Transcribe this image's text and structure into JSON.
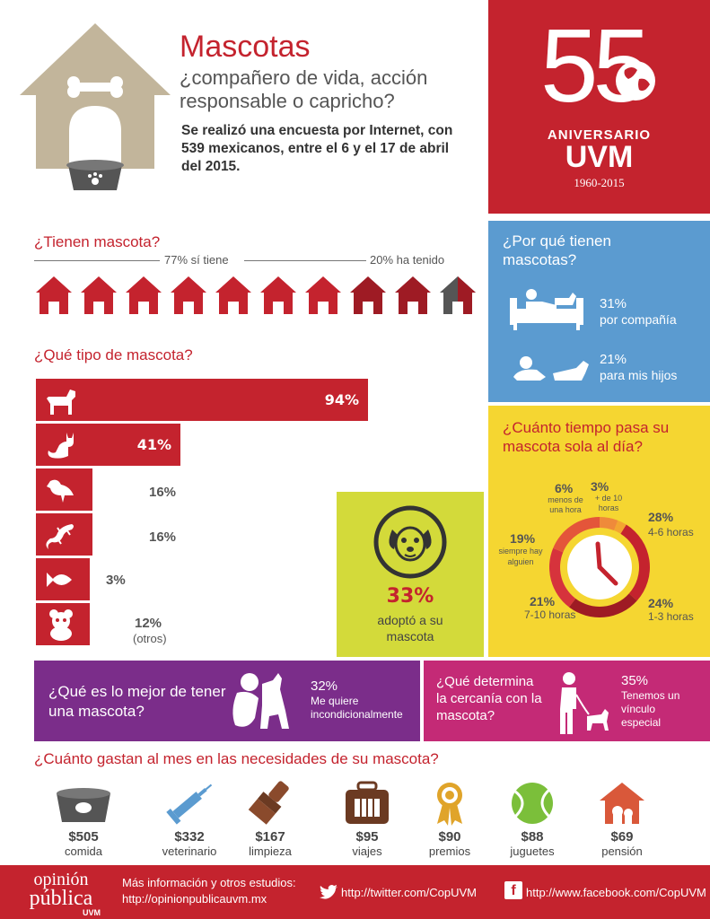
{
  "header": {
    "title": "Mascotas",
    "subtitle": "¿compañero de vida, acción responsable o capricho?",
    "intro": "Se realizó una encuesta por Internet, con 539 mexicanos, entre el 6 y el 17 de abril del 2015."
  },
  "anniversary": {
    "number": "55",
    "label": "ANIVERSARIO",
    "brand": "UVM",
    "years": "1960-2015"
  },
  "have_pet": {
    "question": "¿Tienen mascota?",
    "has": "77% sí tiene",
    "had": "20% ha tenido",
    "houses_total": 10,
    "has_fraction": 0.77,
    "had_fraction": 0.2
  },
  "pet_type": {
    "question": "¿Qué tipo de mascota?",
    "items": [
      {
        "icon": "dog-icon",
        "pct": "94%",
        "value": 94
      },
      {
        "icon": "cat-icon",
        "pct": "41%",
        "value": 41
      },
      {
        "icon": "bird-icon",
        "pct": "16%",
        "value": 16
      },
      {
        "icon": "lizard-icon",
        "pct": "16%",
        "value": 16
      },
      {
        "icon": "fish-icon",
        "pct": "3%",
        "value": 3
      },
      {
        "icon": "panda-icon",
        "pct": "12%",
        "value": 12,
        "note": "(otros)"
      }
    ]
  },
  "why": {
    "question": "¿Por qué tienen mascotas?",
    "items": [
      {
        "pct": "31%",
        "label": "por compañía",
        "icon": "couch-person-dog-icon"
      },
      {
        "pct": "21%",
        "label": "para mis hijos",
        "icon": "baby-dog-icon"
      }
    ]
  },
  "alone": {
    "question": "¿Cuánto tiempo pasa su mascota sola al día?",
    "segments": [
      {
        "pct": "28%",
        "label": "4-6 horas",
        "value": 28,
        "color": "#c4232e"
      },
      {
        "pct": "24%",
        "label": "1-3 horas",
        "value": 24,
        "color": "#9e1b24"
      },
      {
        "pct": "21%",
        "label": "7-10 horas",
        "value": 21,
        "color": "#d6333c"
      },
      {
        "pct": "19%",
        "label": "siempre hay alguien",
        "value": 19,
        "color": "#e4553a"
      },
      {
        "pct": "6%",
        "label": "menos de una hora",
        "value": 6,
        "color": "#ef8a3a"
      },
      {
        "pct": "3%",
        "label": "+ de 10 horas",
        "value": 3,
        "color": "#f3a531"
      }
    ]
  },
  "adopted": {
    "pct": "33%",
    "label": "adoptó a su mascota"
  },
  "best": {
    "question": "¿Qué es lo mejor de tener una mascota?",
    "pct": "32%",
    "answer": "Me quiere incondicionalmente"
  },
  "closeness": {
    "question": "¿Qué determina la cercanía con la mascota?",
    "pct": "35%",
    "answer": "Tenemos un vínculo especial"
  },
  "spending": {
    "question": "¿Cuánto gastan al mes en las necesidades de su mascota?",
    "items": [
      {
        "amount": "$505",
        "label": "comida",
        "icon": "food-bowl-icon"
      },
      {
        "amount": "$332",
        "label": "veterinario",
        "icon": "syringe-icon"
      },
      {
        "amount": "$167",
        "label": "limpieza",
        "icon": "brush-icon"
      },
      {
        "amount": "$95",
        "label": "viajes",
        "icon": "pet-carrier-icon"
      },
      {
        "amount": "$90",
        "label": "premios",
        "icon": "award-ribbon-icon"
      },
      {
        "amount": "$88",
        "label": "juguetes",
        "icon": "tennis-ball-icon"
      },
      {
        "amount": "$69",
        "label": "pensión",
        "icon": "pet-house-icon"
      }
    ]
  },
  "footer": {
    "logo_line1": "opinión",
    "logo_line2": "pública",
    "logo_line3": "UVM",
    "more_info": "Más información y otros estudios:",
    "site": "http://opinionpublicauvm.mx",
    "twitter": "http://twitter.com/CopUVM",
    "facebook": "http://www.facebook.com/CopUVM"
  },
  "colors": {
    "red": "#c4232e",
    "blue": "#5b9bd0",
    "yellow": "#f5d631",
    "lime": "#d3da3a",
    "purple": "#7b2d8a",
    "magenta": "#c42a76",
    "beige": "#c2b59b"
  }
}
